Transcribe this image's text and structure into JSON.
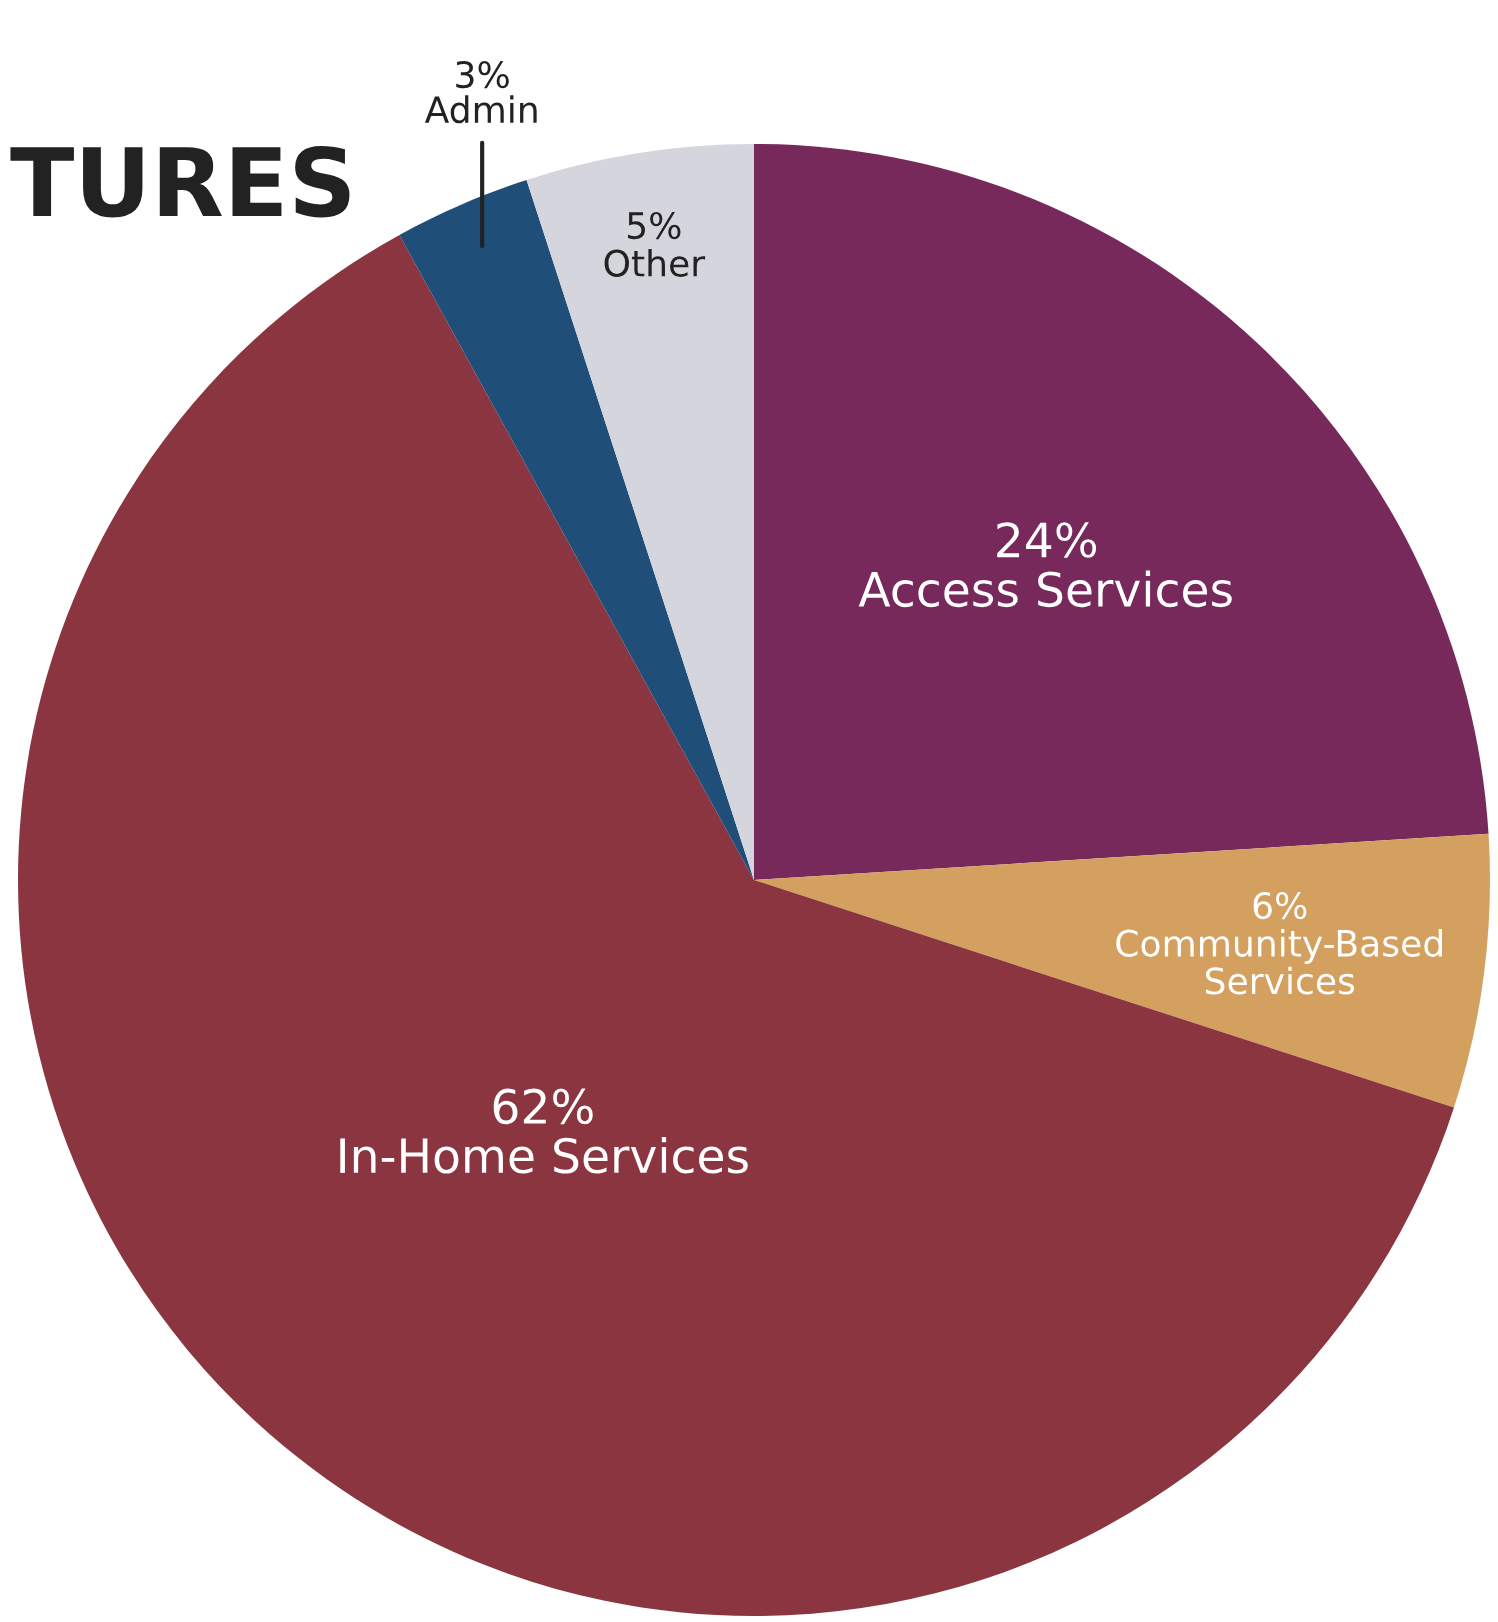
{
  "chart_data": {
    "type": "pie",
    "title": "TURES",
    "categories": [
      "Access Services",
      "Community-Based\nServices",
      "In-Home Services",
      "Admin",
      "Other"
    ],
    "values": [
      24,
      6,
      62,
      3,
      5
    ],
    "value_labels": [
      "24%",
      "6%",
      "62%",
      "3%",
      "5%"
    ],
    "colors": [
      "#76295a",
      "#d4a05f",
      "#8a3540",
      "#1f4e79",
      "#d5d5de"
    ]
  }
}
